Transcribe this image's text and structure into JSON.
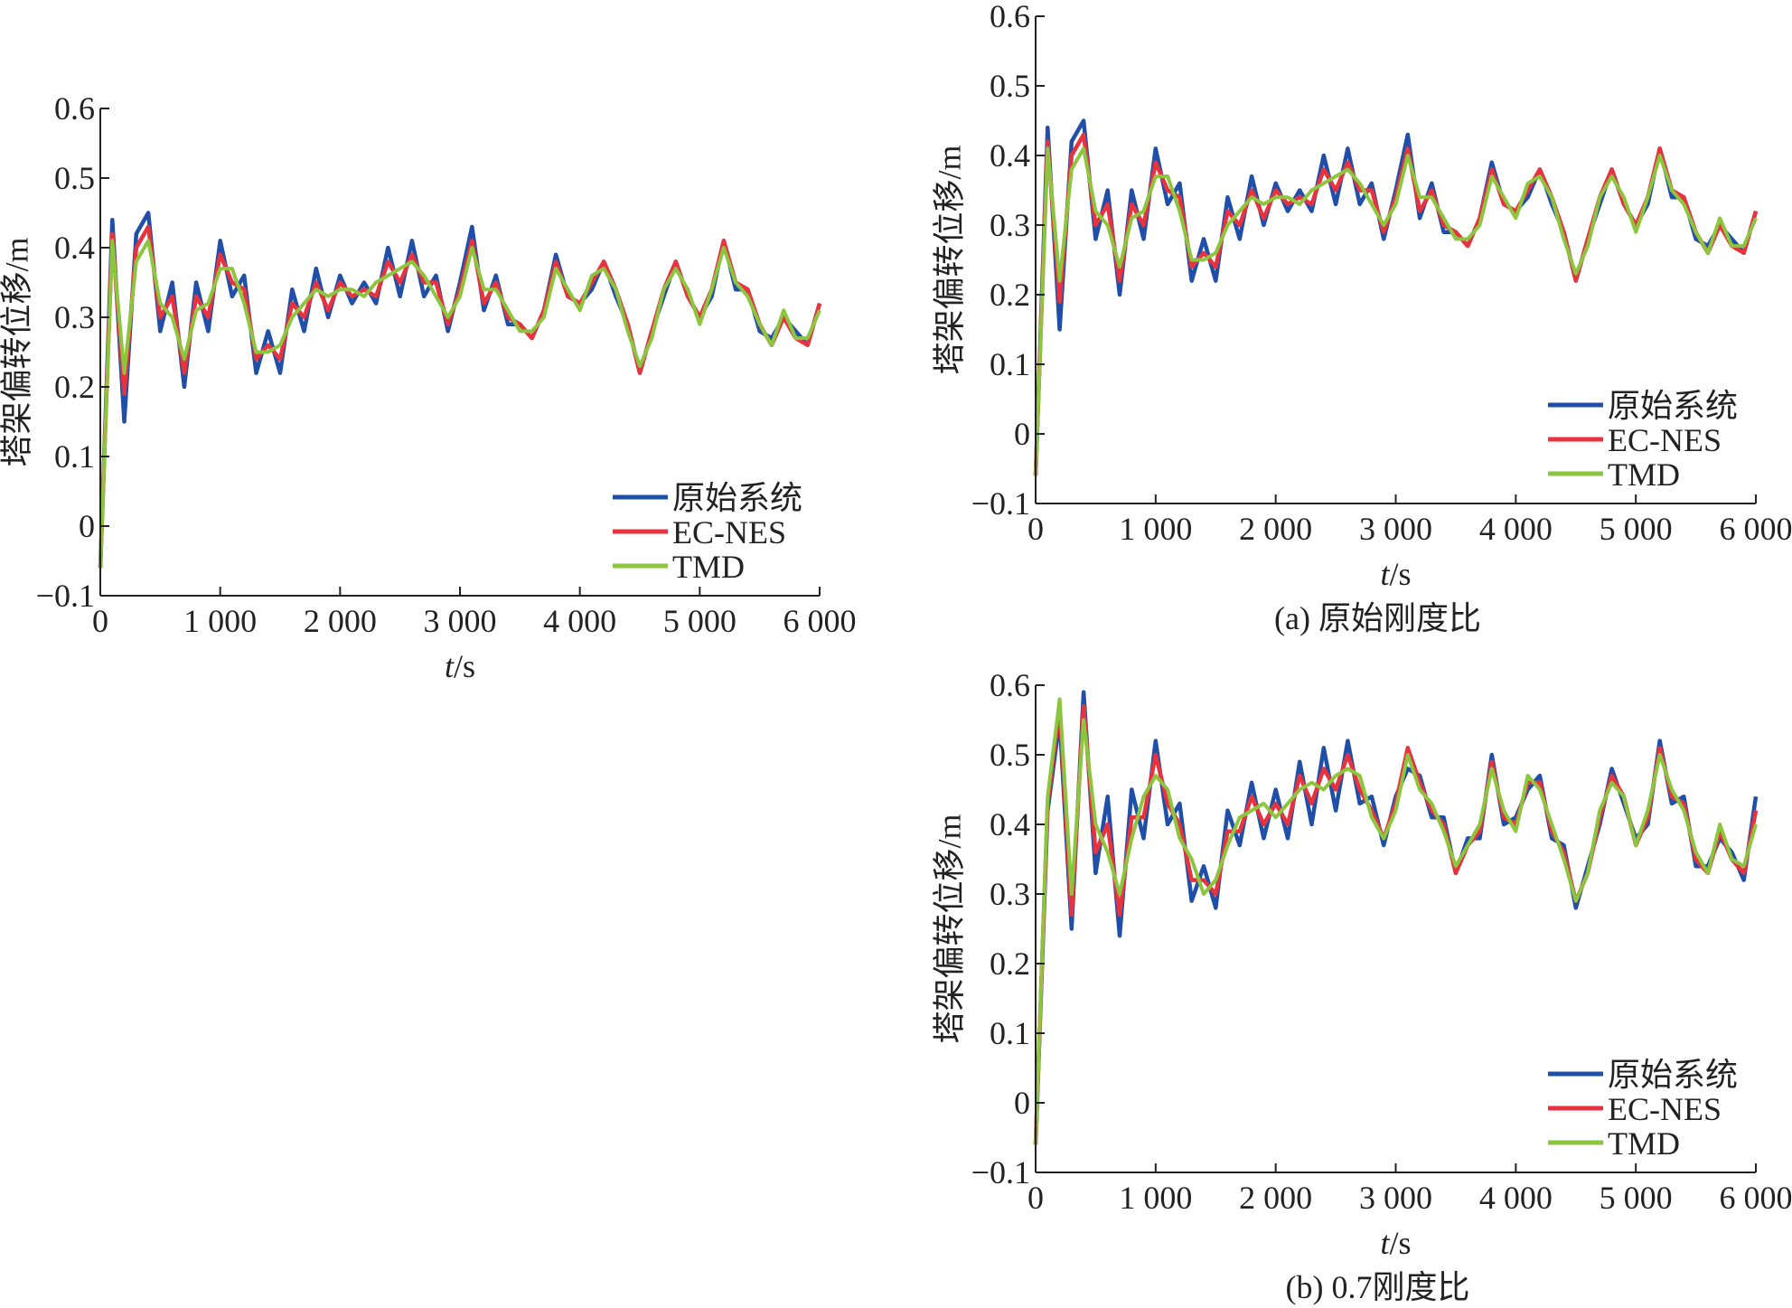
{
  "chart_data": [
    {
      "id": "left",
      "type": "line",
      "title": "",
      "caption": "",
      "xlabel_italic": "t",
      "xlabel_unit": "/s",
      "ylabel": "塔架偏转位移/m",
      "xlim": [
        0,
        6000
      ],
      "ylim": [
        -0.1,
        0.6
      ],
      "xticks": [
        0,
        1000,
        2000,
        3000,
        4000,
        5000,
        6000
      ],
      "xtick_labels": [
        "0",
        "1 000",
        "2 000",
        "3 000",
        "4 000",
        "5 000",
        "6 000"
      ],
      "yticks": [
        -0.1,
        0,
        0.1,
        0.2,
        0.3,
        0.4,
        0.5,
        0.6
      ],
      "ytick_labels": [
        "−0.1",
        "0",
        "0.1",
        "0.2",
        "0.3",
        "0.4",
        "0.5",
        "0.6"
      ],
      "legend_position": "bottom-right",
      "x_start": 0,
      "x_step": 100,
      "series_ref": "a"
    },
    {
      "id": "a",
      "type": "line",
      "caption": "(a) 原始刚度比",
      "xlabel_italic": "t",
      "xlabel_unit": "/s",
      "ylabel": "塔架偏转位移/m",
      "xlim": [
        0,
        6000
      ],
      "ylim": [
        -0.1,
        0.6
      ],
      "xticks": [
        0,
        1000,
        2000,
        3000,
        4000,
        5000,
        6000
      ],
      "xtick_labels": [
        "0",
        "1 000",
        "2 000",
        "3 000",
        "4 000",
        "5 000",
        "6 000"
      ],
      "yticks": [
        -0.1,
        0,
        0.1,
        0.2,
        0.3,
        0.4,
        0.5,
        0.6
      ],
      "ytick_labels": [
        "−0.1",
        "0",
        "0.1",
        "0.2",
        "0.3",
        "0.4",
        "0.5",
        "0.6"
      ],
      "legend_position": "bottom-right",
      "x_start": 0,
      "x_step": 100,
      "series": [
        {
          "name": "原始系统",
          "color": "#1f4fa8",
          "values": [
            -0.06,
            0.44,
            0.15,
            0.42,
            0.45,
            0.28,
            0.35,
            0.2,
            0.35,
            0.28,
            0.41,
            0.33,
            0.36,
            0.22,
            0.28,
            0.22,
            0.34,
            0.28,
            0.37,
            0.3,
            0.36,
            0.32,
            0.35,
            0.32,
            0.4,
            0.33,
            0.41,
            0.33,
            0.36,
            0.28,
            0.35,
            0.43,
            0.31,
            0.36,
            0.29,
            0.29,
            0.27,
            0.31,
            0.39,
            0.33,
            0.32,
            0.34,
            0.38,
            0.33,
            0.29,
            0.22,
            0.28,
            0.33,
            0.38,
            0.33,
            0.3,
            0.33,
            0.41,
            0.34,
            0.34,
            0.28,
            0.27,
            0.3,
            0.28,
            0.26,
            0.32
          ]
        },
        {
          "name": "EC-NES",
          "color": "#e8333f",
          "values": [
            -0.06,
            0.42,
            0.19,
            0.4,
            0.43,
            0.3,
            0.33,
            0.22,
            0.33,
            0.3,
            0.39,
            0.35,
            0.34,
            0.24,
            0.26,
            0.24,
            0.32,
            0.3,
            0.35,
            0.31,
            0.35,
            0.33,
            0.34,
            0.33,
            0.38,
            0.35,
            0.39,
            0.35,
            0.35,
            0.29,
            0.34,
            0.41,
            0.32,
            0.35,
            0.3,
            0.29,
            0.27,
            0.31,
            0.38,
            0.33,
            0.32,
            0.35,
            0.38,
            0.34,
            0.29,
            0.22,
            0.28,
            0.34,
            0.38,
            0.33,
            0.3,
            0.34,
            0.41,
            0.35,
            0.34,
            0.29,
            0.26,
            0.3,
            0.27,
            0.26,
            0.32
          ]
        },
        {
          "name": "TMD",
          "color": "#8cc63f",
          "values": [
            -0.06,
            0.41,
            0.22,
            0.38,
            0.41,
            0.32,
            0.3,
            0.24,
            0.31,
            0.32,
            0.37,
            0.37,
            0.32,
            0.25,
            0.25,
            0.26,
            0.3,
            0.32,
            0.34,
            0.33,
            0.34,
            0.34,
            0.33,
            0.35,
            0.36,
            0.37,
            0.38,
            0.36,
            0.33,
            0.3,
            0.33,
            0.4,
            0.34,
            0.34,
            0.31,
            0.28,
            0.28,
            0.3,
            0.37,
            0.34,
            0.31,
            0.36,
            0.37,
            0.34,
            0.28,
            0.23,
            0.27,
            0.34,
            0.37,
            0.34,
            0.29,
            0.34,
            0.4,
            0.35,
            0.33,
            0.29,
            0.26,
            0.31,
            0.27,
            0.27,
            0.31
          ]
        }
      ]
    },
    {
      "id": "b",
      "type": "line",
      "caption": "(b) 0.7刚度比",
      "xlabel_italic": "t",
      "xlabel_unit": "/s",
      "ylabel": "塔架偏转位移/m",
      "xlim": [
        0,
        6000
      ],
      "ylim": [
        -0.1,
        0.6
      ],
      "xticks": [
        0,
        1000,
        2000,
        3000,
        4000,
        5000,
        6000
      ],
      "xtick_labels": [
        "0",
        "1 000",
        "2 000",
        "3 000",
        "4 000",
        "5 000",
        "6 000"
      ],
      "yticks": [
        -0.1,
        0,
        0.1,
        0.2,
        0.3,
        0.4,
        0.5,
        0.6
      ],
      "ytick_labels": [
        "−0.1",
        "0",
        "0.1",
        "0.2",
        "0.3",
        "0.4",
        "0.5",
        "0.6"
      ],
      "legend_position": "bottom-right",
      "x_start": 0,
      "x_step": 100,
      "series": [
        {
          "name": "原始系统",
          "color": "#1f4fa8",
          "values": [
            -0.06,
            0.42,
            0.55,
            0.25,
            0.59,
            0.33,
            0.44,
            0.24,
            0.45,
            0.38,
            0.52,
            0.4,
            0.43,
            0.29,
            0.34,
            0.28,
            0.42,
            0.37,
            0.46,
            0.38,
            0.45,
            0.38,
            0.49,
            0.4,
            0.51,
            0.42,
            0.52,
            0.43,
            0.44,
            0.37,
            0.44,
            0.48,
            0.47,
            0.41,
            0.41,
            0.33,
            0.38,
            0.38,
            0.5,
            0.4,
            0.41,
            0.45,
            0.47,
            0.38,
            0.37,
            0.28,
            0.34,
            0.4,
            0.48,
            0.43,
            0.38,
            0.4,
            0.52,
            0.43,
            0.44,
            0.34,
            0.34,
            0.38,
            0.36,
            0.32,
            0.44
          ]
        },
        {
          "name": "EC-NES",
          "color": "#e8333f",
          "values": [
            -0.06,
            0.43,
            0.57,
            0.27,
            0.57,
            0.36,
            0.4,
            0.27,
            0.41,
            0.41,
            0.5,
            0.43,
            0.4,
            0.32,
            0.32,
            0.3,
            0.39,
            0.39,
            0.44,
            0.4,
            0.43,
            0.4,
            0.47,
            0.43,
            0.48,
            0.45,
            0.5,
            0.45,
            0.42,
            0.38,
            0.43,
            0.51,
            0.46,
            0.42,
            0.4,
            0.33,
            0.37,
            0.39,
            0.49,
            0.41,
            0.4,
            0.46,
            0.46,
            0.39,
            0.36,
            0.29,
            0.33,
            0.41,
            0.47,
            0.44,
            0.37,
            0.41,
            0.51,
            0.44,
            0.43,
            0.35,
            0.33,
            0.39,
            0.35,
            0.33,
            0.42
          ]
        },
        {
          "name": "TMD",
          "color": "#8cc63f",
          "values": [
            -0.06,
            0.44,
            0.58,
            0.3,
            0.55,
            0.4,
            0.36,
            0.3,
            0.38,
            0.44,
            0.47,
            0.45,
            0.38,
            0.35,
            0.3,
            0.32,
            0.37,
            0.41,
            0.42,
            0.43,
            0.41,
            0.43,
            0.45,
            0.46,
            0.45,
            0.47,
            0.48,
            0.47,
            0.41,
            0.38,
            0.42,
            0.5,
            0.45,
            0.43,
            0.39,
            0.34,
            0.37,
            0.4,
            0.48,
            0.42,
            0.39,
            0.47,
            0.45,
            0.4,
            0.35,
            0.29,
            0.33,
            0.42,
            0.46,
            0.44,
            0.37,
            0.42,
            0.5,
            0.45,
            0.42,
            0.36,
            0.33,
            0.4,
            0.35,
            0.34,
            0.4
          ]
        }
      ]
    }
  ]
}
